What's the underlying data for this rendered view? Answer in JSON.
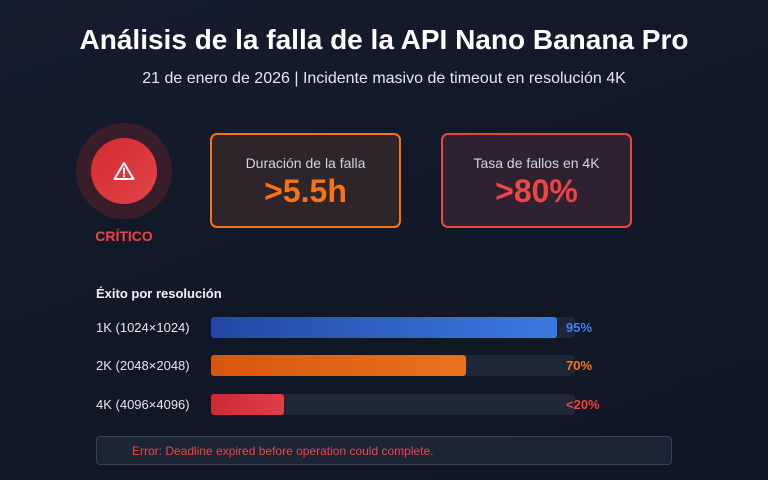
{
  "header": {
    "title": "Análisis de la falla de la API Nano Banana Pro",
    "subtitle": "21 de enero de 2026 | Incidente masivo de timeout en resolución 4K"
  },
  "severity": {
    "icon": "warning-triangle-icon",
    "label": "CRÍTICO",
    "color": "#ef4444"
  },
  "metrics": [
    {
      "label": "Duración de la falla",
      "value": ">5.5h",
      "color": "#f97316"
    },
    {
      "label": "Tasa de fallos en 4K",
      "value": ">80%",
      "color": "#ef4444"
    }
  ],
  "success": {
    "title": "Éxito por resolución",
    "rows": [
      {
        "label": "1K (1024×1024)",
        "value_label": "95%",
        "percent": 95,
        "color": "#3b82f6",
        "gradient": [
          "#2447a8",
          "#3b7be0"
        ]
      },
      {
        "label": "2K (2048×2048)",
        "value_label": "70%",
        "percent": 70,
        "color": "#f97316",
        "gradient": [
          "#d9560f",
          "#e8721c"
        ]
      },
      {
        "label": "4K (4096×4096)",
        "value_label": "<20%",
        "percent": 20,
        "color": "#ef4444",
        "gradient": [
          "#cc2a31",
          "#de4048"
        ]
      }
    ]
  },
  "error": {
    "message": "Error: Deadline expired before operation could complete."
  }
}
